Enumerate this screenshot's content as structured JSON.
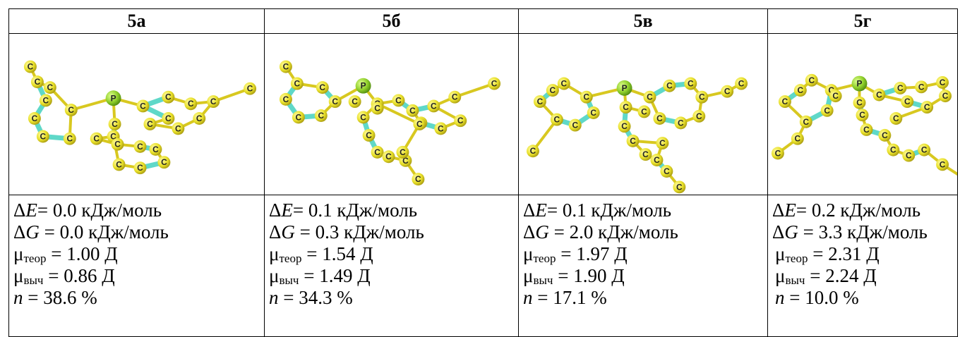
{
  "columns": [
    {
      "header": "5а",
      "dE": "0.0 кДж/моль",
      "dG": "0.0 кДж/моль",
      "mu_teor": "1.00 Д",
      "mu_vych": "0.86 Д",
      "n": "38.6 %",
      "atom_p": "P",
      "atom_c": "C"
    },
    {
      "header": "5б",
      "dE": "0.1 кДж/моль",
      "dG": "0.3 кДж/моль",
      "mu_teor": "1.54 Д",
      "mu_vych": "1.49 Д",
      "n": "34.3 %",
      "atom_p": "P",
      "atom_c": "C"
    },
    {
      "header": "5в",
      "dE": "0.1 кДж/моль",
      "dG": "2.0 кДж/моль",
      "mu_teor": "1.97 Д",
      "mu_vych": "1.90 Д",
      "n": "17.1 %",
      "atom_p": "P",
      "atom_c": "C"
    },
    {
      "header": "5г",
      "dE": "0.2 кДж/моль",
      "dG": "3.3 кДж/моль",
      "mu_teor": "2.31 Д",
      "mu_vych": "2.24 Д",
      "n": "10.0 %",
      "atom_p": "P",
      "atom_c": "C"
    }
  ],
  "labels": {
    "dE_prefix": "ΔE",
    "dG_prefix": "ΔG",
    "mu": "μ",
    "teor_sub": "теор",
    "vych_sub": "выч",
    "n_prefix": "n",
    "eq": "=",
    "eq_tight": "="
  },
  "colors": {
    "carbon": "#e8e02a",
    "phosphorus": "#8fcf2a",
    "aromatic_bond": "#5fd8c8",
    "single_bond": "#d8c820"
  }
}
